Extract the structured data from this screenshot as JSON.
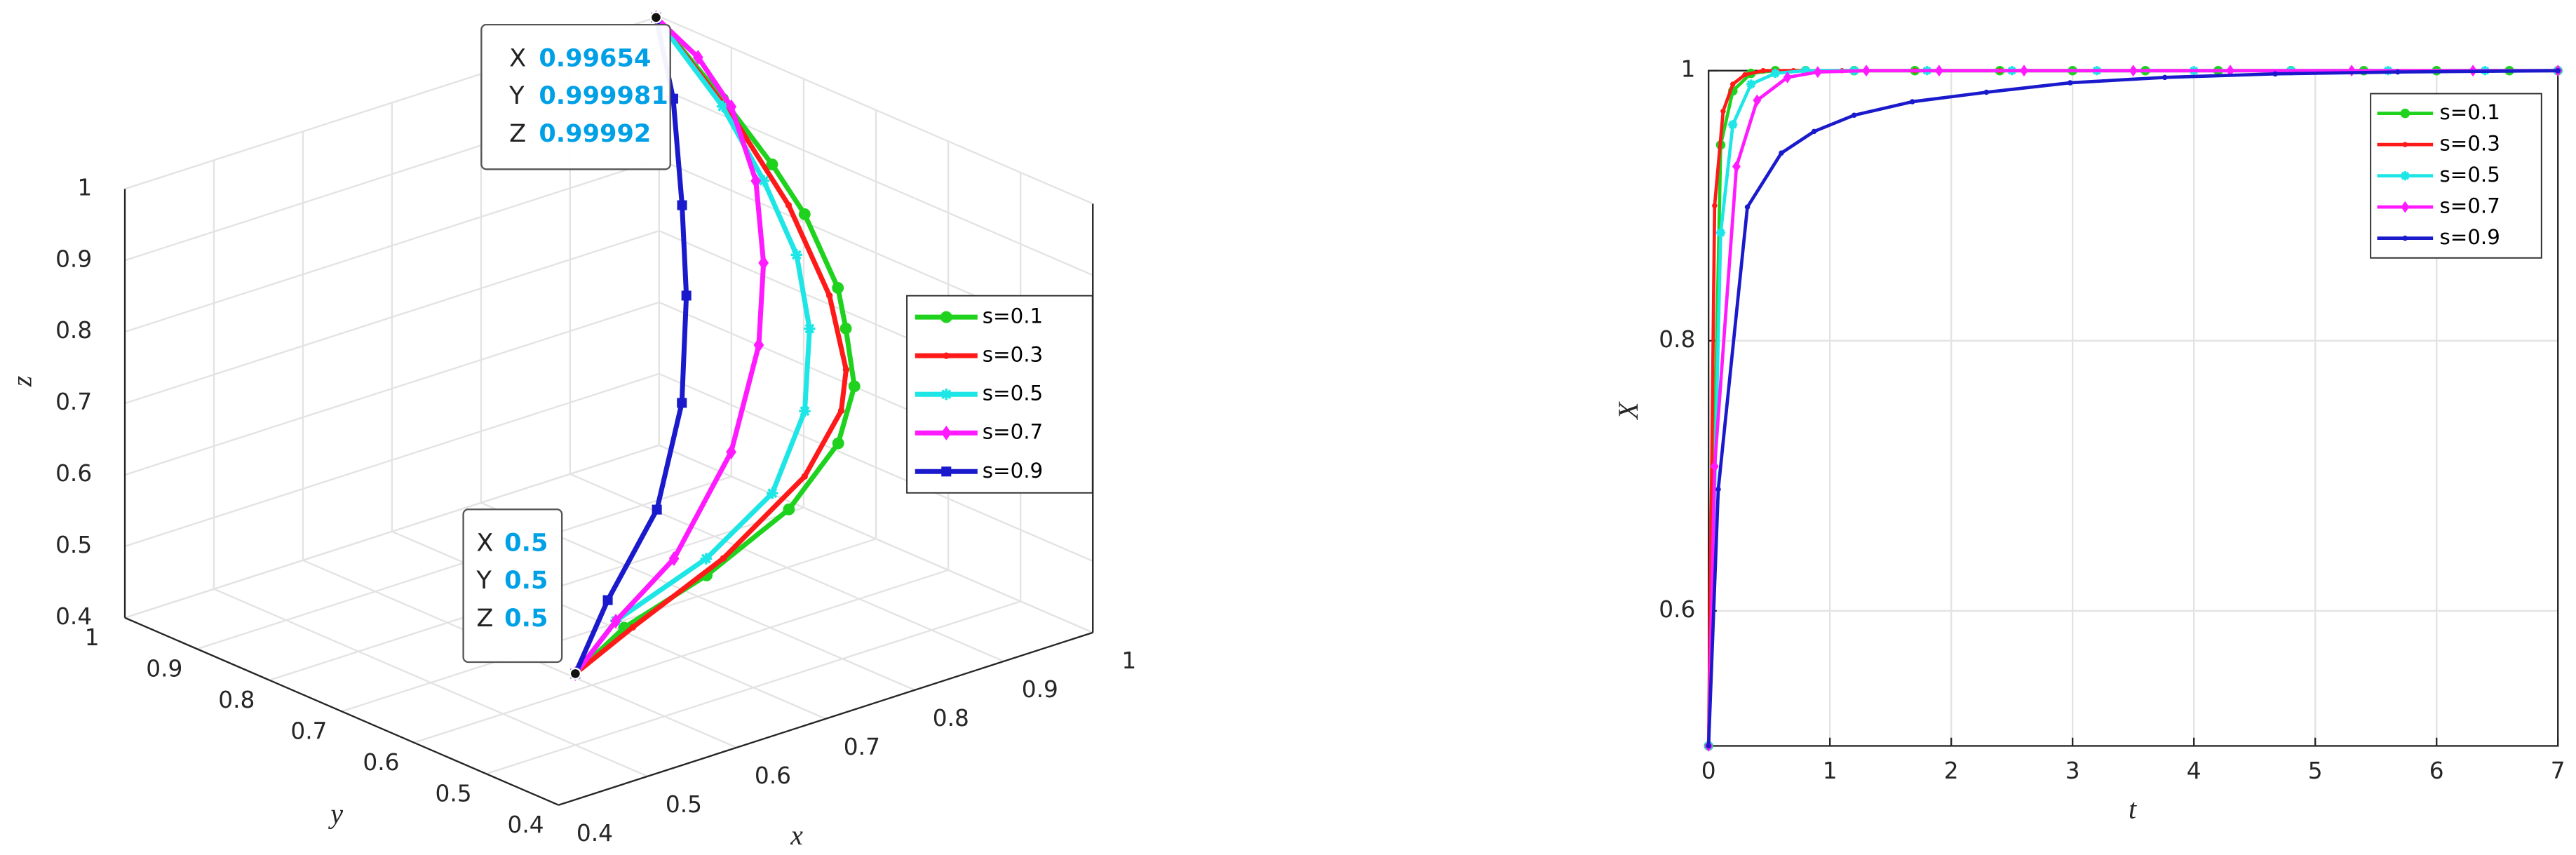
{
  "chart_data": [
    {
      "type": "line3d",
      "xlabel": "x",
      "ylabel": "y",
      "zlabel": "z",
      "xlim": [
        0.4,
        1
      ],
      "ylim": [
        0.4,
        1
      ],
      "zlim": [
        0.4,
        1
      ],
      "xticks": [
        0.4,
        0.5,
        0.6,
        0.7,
        0.8,
        0.9,
        1
      ],
      "yticks": [
        0.4,
        0.5,
        0.6,
        0.7,
        0.8,
        0.9,
        1
      ],
      "zticks": [
        0.4,
        0.5,
        0.6,
        0.7,
        0.8,
        0.9,
        1
      ],
      "grid": true,
      "legend": "right",
      "series": [
        {
          "name": "s=0.1",
          "color": "#1ed21e",
          "marker": "circle",
          "x": [
            0.5,
            0.571,
            0.688,
            0.821,
            0.917,
            0.992,
            0.997,
            0.997,
            0.997,
            0.997,
            0.997,
            0.99654
          ],
          "y": [
            0.5,
            0.52,
            0.55,
            0.6,
            0.65,
            0.72,
            0.738,
            0.749,
            0.795,
            0.84,
            0.908,
            0.999981
          ],
          "z": [
            0.5,
            0.527,
            0.54,
            0.557,
            0.589,
            0.608,
            0.679,
            0.731,
            0.814,
            0.864,
            0.926,
            0.99992
          ]
        },
        {
          "name": "s=0.3",
          "color": "#ff1a1a",
          "marker": "point",
          "x": [
            0.5,
            0.589,
            0.723,
            0.863,
            0.961,
            0.99,
            0.994,
            0.996,
            0.996,
            0.99654
          ],
          "y": [
            0.5,
            0.53,
            0.57,
            0.63,
            0.7,
            0.729,
            0.757,
            0.816,
            0.895,
            0.999981
          ],
          "z": [
            0.5,
            0.516,
            0.541,
            0.573,
            0.595,
            0.628,
            0.718,
            0.818,
            0.91,
            0.99992
          ]
        },
        {
          "name": "s=0.5",
          "color": "#1ee6e6",
          "marker": "star",
          "x": [
            0.5,
            0.578,
            0.72,
            0.843,
            0.92,
            0.966,
            0.992,
            0.995,
            0.995,
            0.99654
          ],
          "y": [
            0.5,
            0.54,
            0.59,
            0.65,
            0.7,
            0.75,
            0.8,
            0.849,
            0.906,
            0.999981
          ],
          "z": [
            0.5,
            0.525,
            0.533,
            0.549,
            0.611,
            0.686,
            0.757,
            0.838,
            0.917,
            0.99992
          ]
        },
        {
          "name": "s=0.7",
          "color": "#ff1aff",
          "marker": "diamond",
          "x": [
            0.5,
            0.586,
            0.692,
            0.813,
            0.909,
            0.963,
            0.995,
            0.995,
            0.995,
            0.99654
          ],
          "y": [
            0.5,
            0.55,
            0.6,
            0.67,
            0.75,
            0.81,
            0.86,
            0.894,
            0.94,
            0.999981
          ],
          "z": [
            0.5,
            0.517,
            0.54,
            0.61,
            0.686,
            0.753,
            0.833,
            0.922,
            0.971,
            0.99992
          ]
        },
        {
          "name": "s=0.9",
          "color": "#1a1acc",
          "marker": "square",
          "x": [
            0.5,
            0.577,
            0.689,
            0.782,
            0.852,
            0.904,
            0.959,
            0.99654
          ],
          "y": [
            0.5,
            0.55,
            0.62,
            0.7,
            0.78,
            0.85,
            0.93,
            0.999981
          ],
          "z": [
            0.5,
            0.55,
            0.601,
            0.678,
            0.765,
            0.84,
            0.932,
            0.99992
          ]
        }
      ],
      "datatips": [
        {
          "labels": [
            "X",
            "Y",
            "Z"
          ],
          "values": [
            0.99654,
            0.999981,
            0.99992
          ]
        },
        {
          "labels": [
            "X",
            "Y",
            "Z"
          ],
          "values": [
            0.5,
            0.5,
            0.5
          ]
        }
      ]
    },
    {
      "type": "line",
      "xlabel": "t",
      "ylabel": "X",
      "xlim": [
        0,
        7
      ],
      "ylim": [
        0.5,
        1
      ],
      "xticks": [
        0,
        1,
        2,
        3,
        4,
        5,
        6,
        7
      ],
      "yticks": [
        0.6,
        0.8,
        1
      ],
      "grid": true,
      "legend": "upper right",
      "series": [
        {
          "name": "s=0.1",
          "color": "#1ed21e",
          "marker": "circle",
          "x": [
            0,
            0.1,
            0.2,
            0.35,
            0.55,
            0.8,
            1.2,
            1.7,
            2.4,
            3,
            3.6,
            4.2,
            4.8,
            5.4,
            6,
            6.6,
            7
          ],
          "values": [
            0.5,
            0.945,
            0.985,
            0.998,
            1,
            1,
            1,
            1,
            1,
            1,
            1,
            1,
            1,
            1,
            1,
            1,
            1
          ]
        },
        {
          "name": "s=0.3",
          "color": "#ff1a1a",
          "marker": "point",
          "x": [
            0,
            0.05,
            0.12,
            0.2,
            0.3,
            0.45,
            0.7,
            1.1,
            1.7,
            2.4,
            3.2,
            4,
            4.8,
            5.6,
            6.4,
            7
          ],
          "values": [
            0.5,
            0.9,
            0.97,
            0.99,
            0.997,
            1,
            1,
            1,
            1,
            1,
            1,
            1,
            1,
            1,
            1,
            1
          ]
        },
        {
          "name": "s=0.5",
          "color": "#1ee6e6",
          "marker": "star",
          "x": [
            0,
            0.1,
            0.2,
            0.35,
            0.55,
            0.8,
            1.2,
            1.8,
            2.5,
            3.2,
            4,
            4.8,
            5.6,
            6.4,
            7
          ],
          "values": [
            0.5,
            0.88,
            0.96,
            0.99,
            0.998,
            1,
            1,
            1,
            1,
            1,
            1,
            1,
            1,
            1,
            1
          ]
        },
        {
          "name": "s=0.7",
          "color": "#ff1aff",
          "marker": "diamond",
          "x": [
            0,
            0.05,
            0.23,
            0.4,
            0.65,
            0.9,
            1.3,
            1.9,
            2.6,
            3.5,
            4.3,
            5.3,
            6.3,
            7
          ],
          "values": [
            0.5,
            0.707,
            0.929,
            0.978,
            0.995,
            0.999,
            1,
            1,
            1,
            1,
            1,
            1,
            1,
            1
          ]
        },
        {
          "name": "s=0.9",
          "color": "#1a1acc",
          "marker": "point",
          "x": [
            0,
            0.08,
            0.32,
            0.6,
            0.87,
            1.2,
            1.68,
            2.29,
            2.98,
            3.76,
            4.67,
            5.68,
            7
          ],
          "values": [
            0.5,
            0.69,
            0.899,
            0.939,
            0.955,
            0.967,
            0.977,
            0.984,
            0.991,
            0.995,
            0.9976,
            0.999,
            1
          ]
        }
      ]
    }
  ]
}
